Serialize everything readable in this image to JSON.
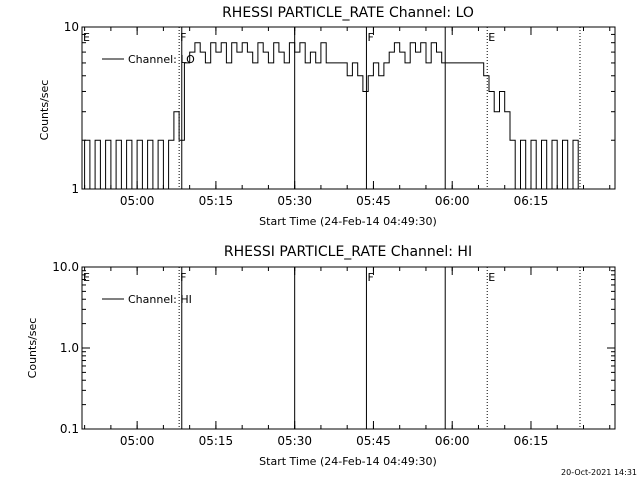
{
  "window": {
    "footer_stamp": "20-Oct-2021 14:31"
  },
  "chart_data": [
    {
      "type": "line",
      "title": "RHESSI PARTICLE_RATE Channel: LO",
      "xlabel": "Start Time (24-Feb-14 04:49:30)",
      "ylabel": "Counts/sec",
      "y_scale": "log",
      "ylim": [
        1,
        10
      ],
      "y_ticks": [
        "10",
        "1"
      ],
      "x_ticks": [
        "05:00",
        "05:15",
        "05:30",
        "05:45",
        "06:00",
        "06:15"
      ],
      "legend": {
        "text": "Channel: LO",
        "placement": "top-left"
      },
      "markers": [
        {
          "label": "E",
          "time": "04:49:30",
          "style": "none"
        },
        {
          "label": "F",
          "time": "05:08:00",
          "style": "dotted"
        },
        {
          "label": "",
          "time": "05:08:30",
          "style": "solid"
        },
        {
          "label": "",
          "time": "05:30:00",
          "style": "solid"
        },
        {
          "label": "F",
          "time": "05:43:40",
          "style": "solid"
        },
        {
          "label": "",
          "time": "05:58:40",
          "style": "solid"
        },
        {
          "label": "E",
          "time": "06:06:40",
          "style": "dotted"
        },
        {
          "label": "",
          "time": "06:24:20",
          "style": "dotted"
        }
      ],
      "series": [
        {
          "x": [
            "04:49:30",
            "04:50:00",
            "04:51:00",
            "04:52:00",
            "04:53:00",
            "04:54:00",
            "04:55:00",
            "04:56:00",
            "04:57:00",
            "04:58:00",
            "04:59:00",
            "05:00:00",
            "05:01:00",
            "05:02:00",
            "05:03:00",
            "05:04:00",
            "05:05:00",
            "05:06:00",
            "05:07:00",
            "05:08:00",
            "05:09:00",
            "05:10:00",
            "05:11:00",
            "05:12:00",
            "05:13:00",
            "05:14:00",
            "05:15:00",
            "05:16:00",
            "05:17:00",
            "05:18:00",
            "05:19:00",
            "05:20:00",
            "05:21:00",
            "05:22:00",
            "05:23:00",
            "05:24:00",
            "05:25:00",
            "05:26:00",
            "05:27:00",
            "05:28:00",
            "05:29:00",
            "05:30:00",
            "05:31:00",
            "05:32:00",
            "05:33:00",
            "05:34:00",
            "05:35:00",
            "05:36:00",
            "05:37:00",
            "05:38:00",
            "05:39:00",
            "05:40:00",
            "05:41:00",
            "05:42:00",
            "05:43:00",
            "05:44:00",
            "05:45:00",
            "05:46:00",
            "05:47:00",
            "05:48:00",
            "05:49:00",
            "05:50:00",
            "05:51:00",
            "05:52:00",
            "05:53:00",
            "05:54:00",
            "05:55:00",
            "05:56:00",
            "05:57:00",
            "05:58:00",
            "05:59:00",
            "06:00:00",
            "06:01:00",
            "06:02:00",
            "06:03:00",
            "06:04:00",
            "06:05:00",
            "06:06:00",
            "06:07:00",
            "06:08:00",
            "06:09:00",
            "06:10:00",
            "06:11:00",
            "06:12:00",
            "06:13:00",
            "06:14:00",
            "06:15:00",
            "06:16:00",
            "06:17:00",
            "06:18:00",
            "06:19:00",
            "06:20:00",
            "06:21:00",
            "06:22:00",
            "06:23:00",
            "06:24:00"
          ],
          "y": [
            1,
            2,
            1,
            2,
            1,
            2,
            1,
            2,
            1,
            2,
            1,
            2,
            1,
            2,
            1,
            2,
            1,
            2,
            3,
            2,
            6,
            7,
            8,
            7,
            6,
            8,
            7,
            8,
            6,
            8,
            7,
            8,
            7,
            6,
            8,
            7,
            6,
            8,
            7,
            6,
            8,
            7,
            8,
            6,
            7,
            6,
            8,
            6,
            6,
            6,
            6,
            5,
            6,
            5,
            4,
            5,
            6,
            5,
            6,
            7,
            8,
            7,
            6,
            8,
            7,
            8,
            6,
            8,
            7,
            6,
            6,
            6,
            6,
            6,
            6,
            6,
            6,
            5,
            4,
            3,
            4,
            3,
            2,
            1,
            2,
            1,
            2,
            1,
            2,
            1,
            2,
            1,
            2,
            1,
            2,
            1
          ]
        }
      ]
    },
    {
      "type": "line",
      "title": "RHESSI PARTICLE_RATE Channel: HI",
      "xlabel": "Start Time (24-Feb-14 04:49:30)",
      "ylabel": "Counts/sec",
      "y_scale": "log",
      "ylim": [
        0.1,
        10
      ],
      "y_ticks": [
        "10.0",
        "1.0",
        "0.1"
      ],
      "x_ticks": [
        "05:00",
        "05:15",
        "05:30",
        "05:45",
        "06:00",
        "06:15"
      ],
      "legend": {
        "text": "Channel: HI",
        "placement": "top-left"
      },
      "markers": [
        {
          "label": "E",
          "time": "04:49:30",
          "style": "none"
        },
        {
          "label": "F",
          "time": "05:08:00",
          "style": "dotted"
        },
        {
          "label": "",
          "time": "05:08:30",
          "style": "solid"
        },
        {
          "label": "",
          "time": "05:30:00",
          "style": "solid"
        },
        {
          "label": "F",
          "time": "05:43:40",
          "style": "solid"
        },
        {
          "label": "",
          "time": "05:58:40",
          "style": "solid"
        },
        {
          "label": "E",
          "time": "06:06:40",
          "style": "dotted"
        },
        {
          "label": "",
          "time": "06:24:20",
          "style": "dotted"
        }
      ],
      "series": []
    }
  ]
}
